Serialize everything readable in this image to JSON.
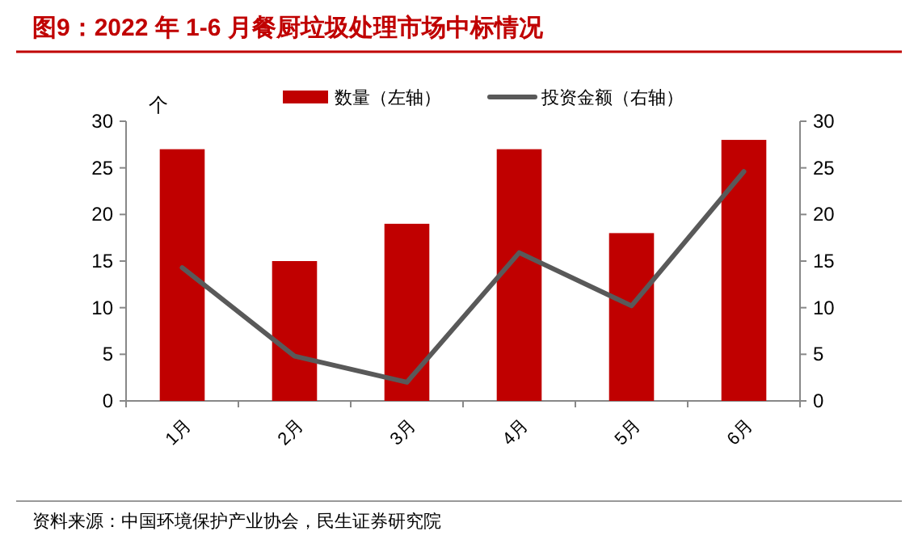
{
  "chart_data": {
    "type": "bar",
    "title": "图9：2022 年 1-6 月餐厨垃圾处理市场中标情况",
    "ylabel": "个",
    "categories": [
      "1月",
      "2月",
      "3月",
      "4月",
      "5月",
      "6月"
    ],
    "series": [
      {
        "name": "数量（左轴）",
        "color": "#c00000",
        "values": [
          27,
          15,
          19,
          27,
          18,
          28
        ]
      },
      {
        "name": "投资金额（右轴）",
        "type": "line",
        "axis": "y2",
        "color": "#595959",
        "values": [
          14.3,
          4.8,
          2.0,
          15.9,
          10.2,
          24.6
        ]
      }
    ],
    "ylim": [
      0,
      30
    ],
    "yticks": [
      0,
      5,
      10,
      15,
      20,
      25,
      30
    ],
    "y2lim": [
      0,
      30
    ],
    "y2ticks": [
      0,
      5,
      10,
      15,
      20,
      25,
      30
    ],
    "legend": "top",
    "grid": false,
    "marker": "none",
    "line_style": "solid",
    "annotations": [
      "资料来源：中国环境保护产业协会，民生证券研究院"
    ]
  }
}
